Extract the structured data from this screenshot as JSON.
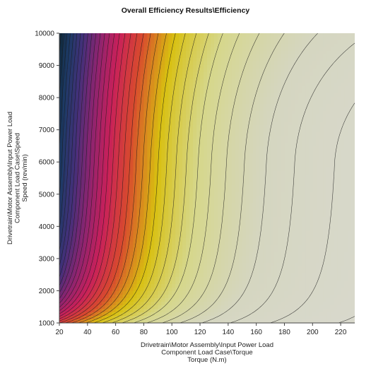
{
  "chart_data": {
    "type": "heatmap",
    "title": "Overall Efficiency Results\\Efficiency",
    "xlabel_lines": [
      "Drivetrain\\Motor Assembly\\Input Power Load",
      "Component Load Case\\Torque",
      "Torque (N.m)"
    ],
    "ylabel_lines": [
      "Drivetrain\\Motor Assembly\\Input Power Load",
      "Component Load Case\\Speed",
      "Speed (rev/min)"
    ],
    "xlim": [
      20,
      230
    ],
    "ylim": [
      1000,
      10000
    ],
    "x_ticks": [
      20,
      40,
      60,
      80,
      100,
      120,
      140,
      160,
      180,
      200,
      220
    ],
    "y_ticks": [
      1000,
      2000,
      3000,
      4000,
      5000,
      6000,
      7000,
      8000,
      9000,
      10000
    ],
    "contours": true,
    "colormap": [
      "#0d2633",
      "#1d3a66",
      "#44307a",
      "#8c2470",
      "#c8205a",
      "#d84a2e",
      "#d8c010",
      "#d6d78a",
      "#d5d6c0",
      "#d9d9d0"
    ],
    "efficiency_trend": "lowest at low torque, highest near high torque and mid-high speed"
  }
}
